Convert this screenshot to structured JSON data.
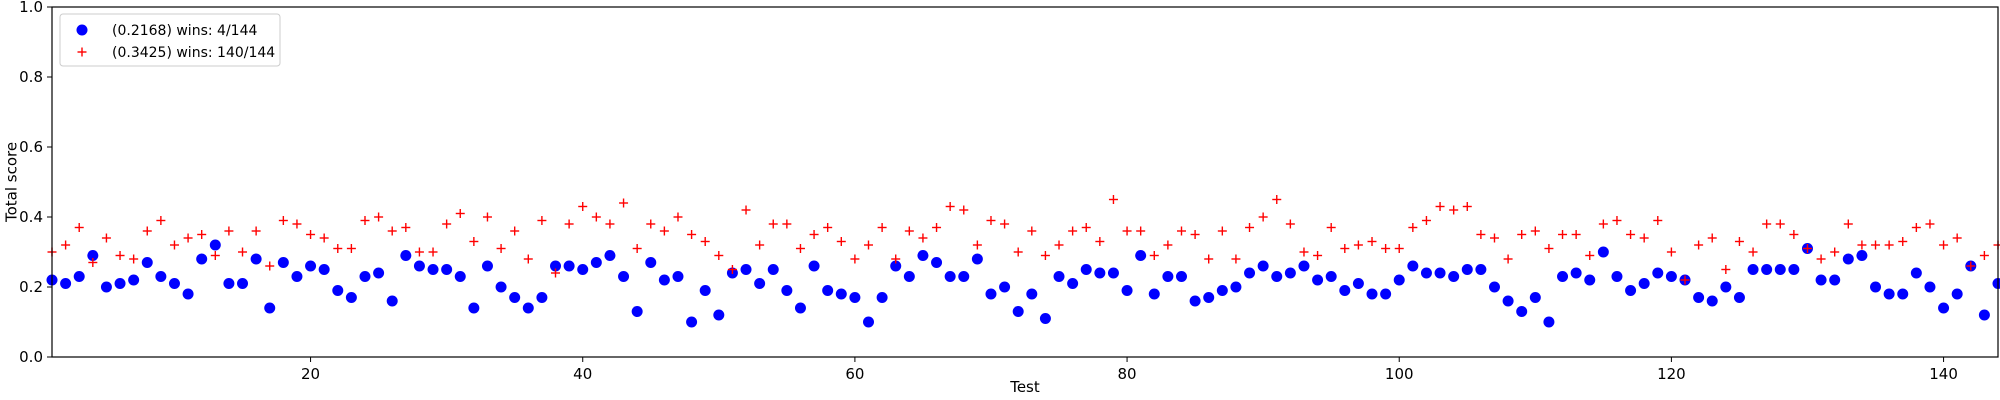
{
  "chart_data": {
    "type": "scatter",
    "title": "",
    "xlabel": "Test",
    "ylabel": "Total score",
    "xlim": [
      1,
      144
    ],
    "ylim": [
      0.0,
      1.0
    ],
    "xticks": [
      20,
      40,
      60,
      80,
      100,
      120,
      140
    ],
    "xtick_labels": [
      "20",
      "40",
      "60",
      "80",
      "100",
      "120",
      "140"
    ],
    "yticks": [
      0.0,
      0.2,
      0.4,
      0.6,
      0.8,
      1.0
    ],
    "ytick_labels": [
      "0.0",
      "0.2",
      "0.4",
      "0.6",
      "0.8",
      "1.0"
    ],
    "grid": false,
    "legend_position": "top-left",
    "x": [
      1,
      2,
      3,
      4,
      5,
      6,
      7,
      8,
      9,
      10,
      11,
      12,
      13,
      14,
      15,
      16,
      17,
      18,
      19,
      20,
      21,
      22,
      23,
      24,
      25,
      26,
      27,
      28,
      29,
      30,
      31,
      32,
      33,
      34,
      35,
      36,
      37,
      38,
      39,
      40,
      41,
      42,
      43,
      44,
      45,
      46,
      47,
      48,
      49,
      50,
      51,
      52,
      53,
      54,
      55,
      56,
      57,
      58,
      59,
      60,
      61,
      62,
      63,
      64,
      65,
      66,
      67,
      68,
      69,
      70,
      71,
      72,
      73,
      74,
      75,
      76,
      77,
      78,
      79,
      80,
      81,
      82,
      83,
      84,
      85,
      86,
      87,
      88,
      89,
      90,
      91,
      92,
      93,
      94,
      95,
      96,
      97,
      98,
      99,
      100,
      101,
      102,
      103,
      104,
      105,
      106,
      107,
      108,
      109,
      110,
      111,
      112,
      113,
      114,
      115,
      116,
      117,
      118,
      119,
      120,
      121,
      122,
      123,
      124,
      125,
      126,
      127,
      128,
      129,
      130,
      131,
      132,
      133,
      134,
      135,
      136,
      137,
      138,
      139,
      140,
      141,
      142,
      143,
      144
    ],
    "series": [
      {
        "name": "(0.2168) wins: 4/144",
        "marker": "circle",
        "color": "#0000ff",
        "values": [
          0.22,
          0.21,
          0.23,
          0.29,
          0.2,
          0.21,
          0.22,
          0.27,
          0.23,
          0.21,
          0.18,
          0.28,
          0.32,
          0.21,
          0.21,
          0.28,
          0.14,
          0.27,
          0.23,
          0.26,
          0.25,
          0.19,
          0.17,
          0.23,
          0.24,
          0.16,
          0.29,
          0.26,
          0.25,
          0.25,
          0.23,
          0.14,
          0.26,
          0.2,
          0.17,
          0.14,
          0.17,
          0.26,
          0.26,
          0.25,
          0.27,
          0.29,
          0.23,
          0.13,
          0.27,
          0.22,
          0.23,
          0.1,
          0.19,
          0.12,
          0.24,
          0.25,
          0.21,
          0.25,
          0.19,
          0.14,
          0.26,
          0.19,
          0.18,
          0.17,
          0.1,
          0.17,
          0.26,
          0.23,
          0.29,
          0.27,
          0.23,
          0.23,
          0.28,
          0.18,
          0.2,
          0.13,
          0.18,
          0.11,
          0.23,
          0.21,
          0.25,
          0.24,
          0.24,
          0.19,
          0.29,
          0.18,
          0.23,
          0.23,
          0.16,
          0.17,
          0.19,
          0.2,
          0.24,
          0.26,
          0.23,
          0.24,
          0.26,
          0.22,
          0.23,
          0.19,
          0.21,
          0.18,
          0.18,
          0.22,
          0.26,
          0.24,
          0.24,
          0.23,
          0.25,
          0.25,
          0.2,
          0.16,
          0.13,
          0.17,
          0.1,
          0.23,
          0.24,
          0.22,
          0.3,
          0.23,
          0.19,
          0.21,
          0.24,
          0.23,
          0.22,
          0.17,
          0.16,
          0.2,
          0.17,
          0.25,
          0.25,
          0.25,
          0.25,
          0.31,
          0.22,
          0.22,
          0.28,
          0.29,
          0.2,
          0.18,
          0.18,
          0.24,
          0.2,
          0.14,
          0.18,
          0.26,
          0.12,
          0.21
        ]
      },
      {
        "name": "(0.3425) wins: 140/144",
        "marker": "plus",
        "color": "#ff0000",
        "values": [
          0.3,
          0.32,
          0.37,
          0.27,
          0.34,
          0.29,
          0.28,
          0.36,
          0.39,
          0.32,
          0.34,
          0.35,
          0.29,
          0.36,
          0.3,
          0.36,
          0.26,
          0.39,
          0.38,
          0.35,
          0.34,
          0.31,
          0.31,
          0.39,
          0.4,
          0.36,
          0.37,
          0.3,
          0.3,
          0.38,
          0.41,
          0.33,
          0.4,
          0.31,
          0.36,
          0.28,
          0.39,
          0.24,
          0.38,
          0.43,
          0.4,
          0.38,
          0.44,
          0.31,
          0.38,
          0.36,
          0.4,
          0.35,
          0.33,
          0.29,
          0.25,
          0.42,
          0.32,
          0.38,
          0.38,
          0.31,
          0.35,
          0.37,
          0.33,
          0.28,
          0.32,
          0.37,
          0.28,
          0.36,
          0.34,
          0.37,
          0.43,
          0.42,
          0.32,
          0.39,
          0.38,
          0.3,
          0.36,
          0.29,
          0.32,
          0.36,
          0.37,
          0.33,
          0.45,
          0.36,
          0.36,
          0.29,
          0.32,
          0.36,
          0.35,
          0.28,
          0.36,
          0.28,
          0.37,
          0.4,
          0.45,
          0.38,
          0.3,
          0.29,
          0.37,
          0.31,
          0.32,
          0.33,
          0.31,
          0.31,
          0.37,
          0.39,
          0.43,
          0.42,
          0.43,
          0.35,
          0.34,
          0.28,
          0.35,
          0.36,
          0.31,
          0.35,
          0.35,
          0.29,
          0.38,
          0.39,
          0.35,
          0.34,
          0.39,
          0.3,
          0.22,
          0.32,
          0.34,
          0.25,
          0.33,
          0.3,
          0.38,
          0.38,
          0.35,
          0.31,
          0.28,
          0.3,
          0.38,
          0.32,
          0.32,
          0.32,
          0.33,
          0.37,
          0.38,
          0.32,
          0.34,
          0.26,
          0.29,
          0.32
        ]
      }
    ]
  }
}
